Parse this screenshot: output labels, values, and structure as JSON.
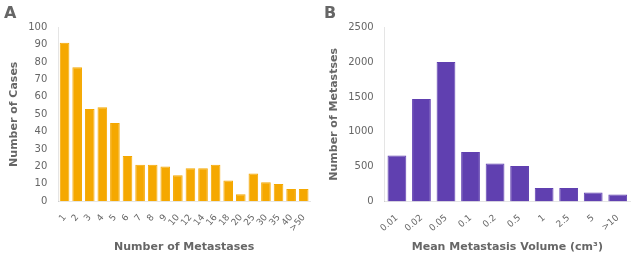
{
  "chart_data": [
    {
      "type": "bar",
      "title": "A",
      "categories": [
        "1",
        "2",
        "3",
        "4",
        "5",
        "6",
        "7",
        "8",
        "9",
        "10",
        "12",
        "14",
        "16",
        "18",
        "20",
        "25",
        "30",
        "35",
        "40",
        ">50"
      ],
      "values": [
        91,
        77,
        53,
        54,
        45,
        26,
        21,
        21,
        20,
        15,
        19,
        19,
        21,
        12,
        4,
        16,
        11,
        10,
        7,
        7
      ],
      "color": "#F5A800",
      "xlabel": "Number of Metastases",
      "ylabel": "Number of Cases",
      "ylim": [
        0,
        100
      ],
      "yticks": [
        0,
        10,
        20,
        30,
        40,
        50,
        60,
        70,
        80,
        90,
        100
      ],
      "grid": false
    },
    {
      "type": "bar",
      "title": "B",
      "categories": [
        "0.01",
        "0.02",
        "0.05",
        "0.1",
        "0.2",
        "0.5",
        "1",
        "2.5",
        "5",
        ">10"
      ],
      "values": [
        660,
        1470,
        2000,
        710,
        545,
        510,
        195,
        195,
        130,
        100
      ],
      "color": "#6040B0",
      "xlabel": "Mean Metastasis Volume (cm³)",
      "ylabel": "Number of Metastses",
      "ylim": [
        0,
        2500
      ],
      "yticks": [
        0,
        500,
        1000,
        1500,
        2000,
        2500
      ],
      "grid": false
    }
  ]
}
